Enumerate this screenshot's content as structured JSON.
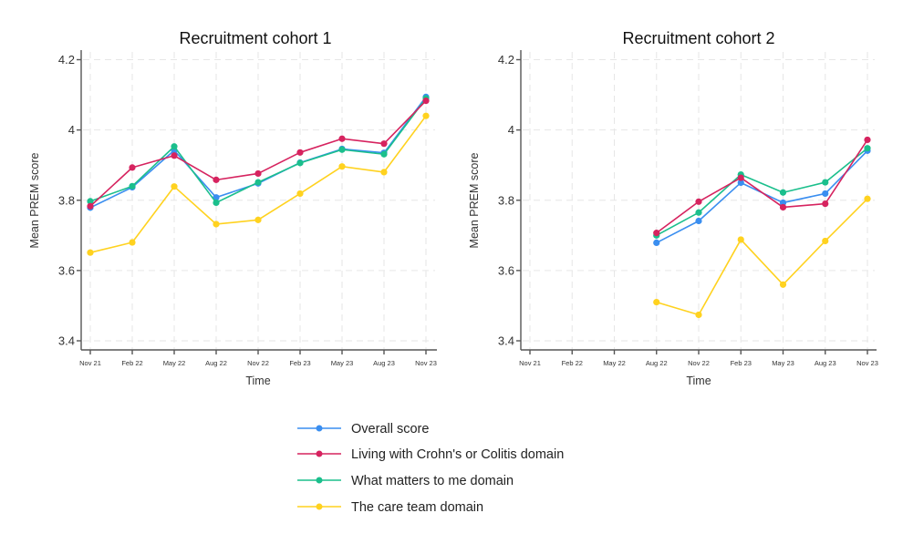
{
  "chart_data": [
    {
      "type": "line",
      "title": "Recruitment cohort 1",
      "xlabel": "Time",
      "ylabel": "Mean PREM score",
      "ylim": [
        3.4,
        4.2
      ],
      "yticks": [
        3.4,
        3.6,
        3.8,
        4.0,
        4.2
      ],
      "ytick_labels": [
        "3.4",
        "3.6",
        "3.8",
        "4",
        "4.2"
      ],
      "categories": [
        "Nov 21",
        "Feb 22",
        "May 22",
        "Aug 22",
        "Nov 22",
        "Feb 23",
        "May 23",
        "Aug 23",
        "Nov 23"
      ],
      "grid": true,
      "series": [
        {
          "name": "Overall score",
          "color": "#3a8ef0",
          "values": [
            3.779,
            3.837,
            3.942,
            3.808,
            3.848,
            3.907,
            3.946,
            3.935,
            4.094
          ]
        },
        {
          "name": "Living with Crohn's or Colitis domain",
          "color": "#d6235f",
          "values": [
            3.783,
            3.893,
            3.927,
            3.858,
            3.876,
            3.936,
            3.975,
            3.961,
            4.083
          ]
        },
        {
          "name": "What matters to me domain",
          "color": "#1bbf8c",
          "values": [
            3.797,
            3.84,
            3.953,
            3.793,
            3.851,
            3.906,
            3.944,
            3.931,
            4.09
          ]
        },
        {
          "name": "The care team domain",
          "color": "#ffd21f",
          "values": [
            3.651,
            3.68,
            3.839,
            3.732,
            3.744,
            3.819,
            3.896,
            3.88,
            4.04
          ]
        }
      ]
    },
    {
      "type": "line",
      "title": "Recruitment cohort 2",
      "xlabel": "Time",
      "ylabel": "Mean PREM score",
      "ylim": [
        3.4,
        4.2
      ],
      "yticks": [
        3.4,
        3.6,
        3.8,
        4.0,
        4.2
      ],
      "ytick_labels": [
        "3.4",
        "3.6",
        "3.8",
        "4",
        "4.2"
      ],
      "categories": [
        "Nov 21",
        "Feb 22",
        "May 22",
        "Aug 22",
        "Nov 22",
        "Feb 23",
        "May 23",
        "Aug 23",
        "Nov 23"
      ],
      "grid": true,
      "series": [
        {
          "name": "Overall score",
          "color": "#3a8ef0",
          "values": [
            null,
            null,
            null,
            3.679,
            3.741,
            3.85,
            3.793,
            3.819,
            3.941
          ]
        },
        {
          "name": "Living with Crohn's or Colitis domain",
          "color": "#d6235f",
          "values": [
            null,
            null,
            null,
            3.707,
            3.796,
            3.864,
            3.78,
            3.79,
            3.972
          ]
        },
        {
          "name": "What matters to me domain",
          "color": "#1bbf8c",
          "values": [
            null,
            null,
            null,
            3.7,
            3.765,
            3.873,
            3.822,
            3.851,
            3.948
          ]
        },
        {
          "name": "The care team domain",
          "color": "#ffd21f",
          "values": [
            null,
            null,
            null,
            3.51,
            3.474,
            3.688,
            3.56,
            3.684,
            3.804
          ]
        }
      ]
    }
  ],
  "legend": {
    "placement": "bottom-center",
    "items": [
      {
        "label": "Overall score",
        "color": "#3a8ef0"
      },
      {
        "label": "Living with Crohn's or Colitis domain",
        "color": "#d6235f"
      },
      {
        "label": "What matters to me domain",
        "color": "#1bbf8c"
      },
      {
        "label": "The care team domain",
        "color": "#ffd21f"
      }
    ]
  }
}
